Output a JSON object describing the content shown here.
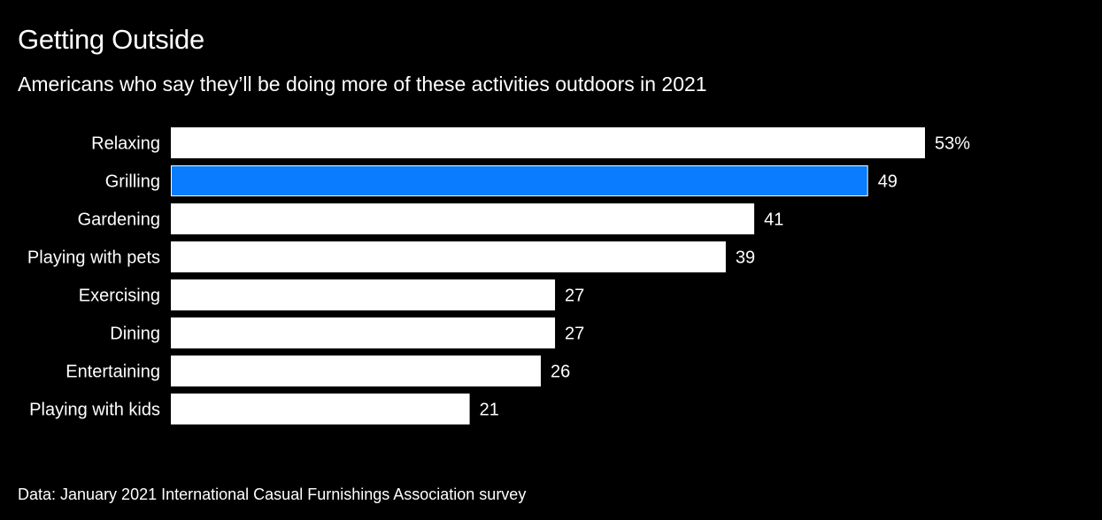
{
  "title": "Getting Outside",
  "subtitle": "Americans who say they’ll be doing more of these activities outdoors in 2021",
  "source": "Data: January 2021 International Casual Furnishings Association survey",
  "colors": {
    "background": "#000000",
    "bar_default": "#ffffff",
    "bar_highlight": "#0a7cff",
    "text": "#ffffff"
  },
  "chart_data": {
    "type": "bar",
    "orientation": "horizontal",
    "categories": [
      "Relaxing",
      "Grilling",
      "Gardening",
      "Playing with pets",
      "Exercising",
      "Dining",
      "Entertaining",
      "Playing with kids"
    ],
    "values": [
      53,
      49,
      41,
      39,
      27,
      27,
      26,
      21
    ],
    "value_labels": [
      "53%",
      "49",
      "41",
      "39",
      "27",
      "27",
      "26",
      "21"
    ],
    "highlight_category": "Grilling",
    "unit": "%",
    "xlim": [
      0,
      53
    ],
    "grid": false,
    "legend": "none"
  }
}
